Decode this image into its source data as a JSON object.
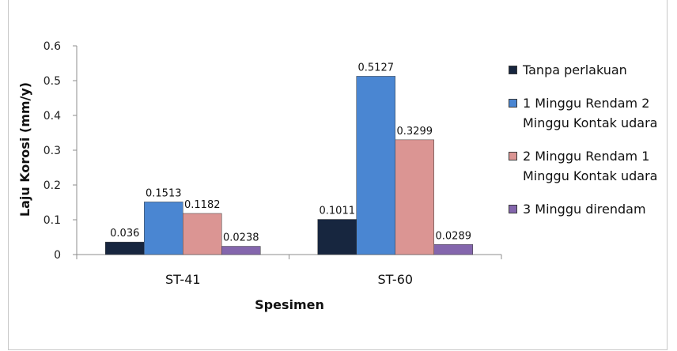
{
  "chart_data": {
    "type": "bar",
    "title": "",
    "xlabel": "Spesimen",
    "ylabel": "Laju Korosi (mm/y)",
    "categories": [
      "ST-41",
      "ST-60"
    ],
    "ylim": [
      0,
      0.6
    ],
    "yticks": [
      "0",
      "0.1",
      "0.2",
      "0.3",
      "0.4",
      "0.5",
      "0.6"
    ],
    "grid": false,
    "legend_position": "right",
    "series": [
      {
        "name": "Tanpa perlakuan",
        "color": "#17263f",
        "values": [
          0.036,
          0.1011
        ],
        "labels": [
          "0.036",
          "0.1011"
        ]
      },
      {
        "name": "1 Minggu Rendam 2 Minggu Kontak udara",
        "color": "#4a86d2",
        "values": [
          0.1513,
          0.5127
        ],
        "labels": [
          "0.1513",
          "0.5127"
        ]
      },
      {
        "name": "2 Minggu Rendam 1 Minggu Kontak udara",
        "color": "#db9593",
        "values": [
          0.1182,
          0.3299
        ],
        "labels": [
          "0.1182",
          "0.3299"
        ]
      },
      {
        "name": "3 Minggu direndam",
        "color": "#8466ad",
        "values": [
          0.0238,
          0.0289
        ],
        "labels": [
          "0.0238",
          "0.0289"
        ]
      }
    ]
  }
}
